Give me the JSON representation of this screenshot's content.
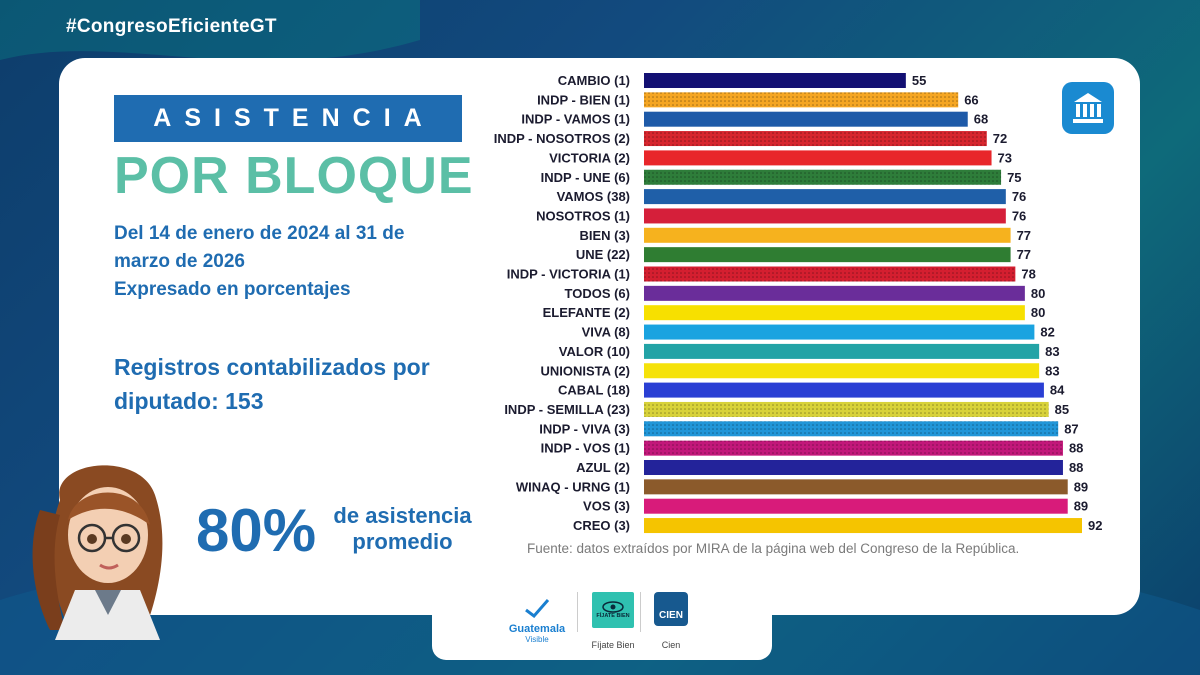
{
  "header": {
    "hashtag": "#CongresoEficienteGT"
  },
  "left_panel": {
    "title": "ASISTENCIA",
    "subtitle": "POR BLOQUE",
    "period": "Del 14 de enero de 2024 al 31 de marzo de 2026",
    "unit_note": "Expresado en porcentajes",
    "records": "Registros contabilizados por diputado: 153",
    "average_value": "80%",
    "average_label": "de asistencia promedio"
  },
  "icons": {
    "top_right": "institution-icon",
    "avatar": "assistant-avatar"
  },
  "source": "Fuente: datos extraídos por MIRA de la página web del Congreso de la República.",
  "logos": [
    {
      "name": "Guatemala",
      "sub": "Visible",
      "caption": ""
    },
    {
      "name": "FÍJATE BIEN",
      "caption": "Fíjate Bien"
    },
    {
      "name": "CIEN",
      "caption": "Cien"
    }
  ],
  "chart_data": {
    "type": "bar",
    "orientation": "horizontal",
    "categories": [
      "CAMBIO (1)",
      "INDP - BIEN (1)",
      "INDP - VAMOS (1)",
      "INDP - NOSOTROS (2)",
      "VICTORIA (2)",
      "INDP - UNE (6)",
      "VAMOS (38)",
      "NOSOTROS (1)",
      "BIEN (3)",
      "UNE (22)",
      "INDP - VICTORIA (1)",
      "TODOS (6)",
      "ELEFANTE (2)",
      "VIVA (8)",
      "VALOR (10)",
      "UNIONISTA (2)",
      "CABAL (18)",
      "INDP - SEMILLA (23)",
      "INDP - VIVA (3)",
      "INDP - VOS (1)",
      "AZUL (2)",
      "WINAQ - URNG (1)",
      "VOS (3)",
      "CREO (3)"
    ],
    "values": [
      55,
      66,
      68,
      72,
      73,
      75,
      76,
      76,
      77,
      77,
      78,
      80,
      80,
      82,
      83,
      83,
      84,
      85,
      87,
      88,
      88,
      89,
      89,
      92
    ],
    "colors": [
      "#131073",
      "#f5a623",
      "#1e5aa8",
      "#d7262e",
      "#e8262a",
      "#2e7d3a",
      "#1f5fa8",
      "#d51f3a",
      "#f6b21e",
      "#2f7d32",
      "#d41f30",
      "#6a2d9a",
      "#f7e000",
      "#1aa3e0",
      "#22a3a6",
      "#f5e20a",
      "#2a3fd4",
      "#d8d23a",
      "#2196d8",
      "#c2187a",
      "#23239a",
      "#8b5a2b",
      "#d81b7a",
      "#f5c400"
    ],
    "patterned": [
      false,
      true,
      false,
      true,
      false,
      true,
      false,
      false,
      false,
      false,
      true,
      false,
      false,
      false,
      false,
      false,
      false,
      true,
      true,
      true,
      false,
      false,
      false,
      false
    ],
    "data_labels": true,
    "xlim": [
      0,
      92
    ],
    "grid": false
  }
}
